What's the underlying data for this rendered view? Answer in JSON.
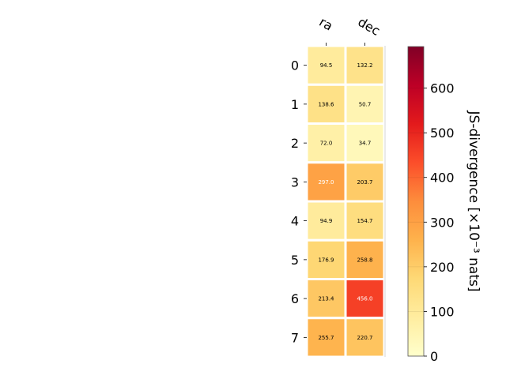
{
  "chart_data": {
    "type": "heatmap",
    "title": "",
    "columns": [
      "ra",
      "dec"
    ],
    "rows": [
      "0",
      "1",
      "2",
      "3",
      "4",
      "5",
      "6",
      "7"
    ],
    "values": [
      [
        94.5,
        132.2
      ],
      [
        138.6,
        50.7
      ],
      [
        72.0,
        34.7
      ],
      [
        297.0,
        203.7
      ],
      [
        94.9,
        154.7
      ],
      [
        176.9,
        258.8
      ],
      [
        213.4,
        456.0
      ],
      [
        255.7,
        220.7
      ]
    ],
    "value_labels": [
      [
        "94.5",
        "132.2"
      ],
      [
        "138.6",
        "50.7"
      ],
      [
        "72.0",
        "34.7"
      ],
      [
        "297.0",
        "203.7"
      ],
      [
        "94.9",
        "154.7"
      ],
      [
        "176.9",
        "258.8"
      ],
      [
        "213.4",
        "456.0"
      ],
      [
        "255.7",
        "220.7"
      ]
    ],
    "colorbar": {
      "label": "JS-divergence [×10⁻³ nats]",
      "min": 0,
      "max": 693,
      "ticks": [
        0,
        100,
        200,
        300,
        400,
        500,
        600
      ],
      "colormap": "YlOrRd"
    }
  }
}
